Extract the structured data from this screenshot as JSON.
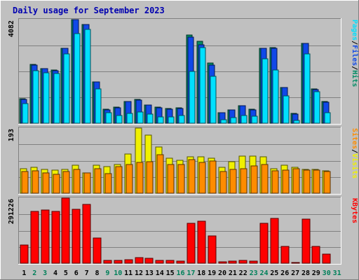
{
  "chart_data": [
    {
      "type": "bar",
      "title": "Daily usage for September 2023",
      "panel": "hits-files-pages",
      "ymax_label": "4082",
      "ylim": [
        0,
        4082
      ],
      "ylabel_parts": [
        {
          "text": "Pages",
          "color": "#00e0ff"
        },
        {
          "text": "/",
          "color": "#000000"
        },
        {
          "text": "Files",
          "color": "#1048e8"
        },
        {
          "text": "/",
          "color": "#000000"
        },
        {
          "text": "Hits",
          "color": "#008c64"
        }
      ],
      "categories": [
        "1",
        "2",
        "3",
        "4",
        "5",
        "6",
        "7",
        "8",
        "9",
        "10",
        "11",
        "12",
        "13",
        "14",
        "15",
        "16",
        "17",
        "18",
        "19",
        "20",
        "21",
        "22",
        "23",
        "24",
        "25",
        "26",
        "27",
        "28",
        "29",
        "30",
        "31"
      ],
      "weekend_days": [
        "2",
        "3",
        "9",
        "10",
        "16",
        "17",
        "23",
        "24",
        "30",
        "31"
      ],
      "series": [
        {
          "name": "Hits",
          "color": "#008c64",
          "values": [
            960,
            2320,
            2160,
            2100,
            2960,
            4082,
            3900,
            1630,
            540,
            630,
            860,
            930,
            730,
            630,
            570,
            600,
            3480,
            3230,
            2360,
            410,
            530,
            690,
            540,
            2960,
            2970,
            1420,
            380,
            3150,
            1340,
            850,
            0
          ]
        },
        {
          "name": "Files",
          "color": "#1048e8",
          "values": [
            940,
            2300,
            2140,
            2080,
            2950,
            4082,
            3890,
            1620,
            530,
            620,
            850,
            920,
            720,
            620,
            560,
            590,
            3380,
            3100,
            2300,
            400,
            520,
            680,
            530,
            2950,
            2960,
            1410,
            370,
            3140,
            1330,
            840,
            0
          ]
        },
        {
          "name": "Pages",
          "color": "#00e0ff",
          "values": [
            760,
            2080,
            1990,
            1960,
            2740,
            3520,
            3690,
            1360,
            410,
            310,
            390,
            450,
            370,
            250,
            250,
            290,
            2030,
            2980,
            1860,
            150,
            210,
            290,
            280,
            2540,
            2090,
            1070,
            120,
            2720,
            1240,
            420,
            0
          ]
        }
      ]
    },
    {
      "type": "bar",
      "panel": "visits-sites",
      "ymax_label": "193",
      "ylim": [
        0,
        193
      ],
      "ylabel_parts": [
        {
          "text": "Sites",
          "color": "#ff8c00"
        },
        {
          "text": "/",
          "color": "#000000"
        },
        {
          "text": "Visits",
          "color": "#f0f000"
        }
      ],
      "categories": [
        "1",
        "2",
        "3",
        "4",
        "5",
        "6",
        "7",
        "8",
        "9",
        "10",
        "11",
        "12",
        "13",
        "14",
        "15",
        "16",
        "17",
        "18",
        "19",
        "20",
        "21",
        "22",
        "23",
        "24",
        "25",
        "26",
        "27",
        "28",
        "29",
        "30",
        "31"
      ],
      "series": [
        {
          "name": "Visits",
          "color": "#f0f000",
          "values": [
            72,
            76,
            70,
            68,
            70,
            84,
            60,
            82,
            78,
            86,
            116,
            193,
            173,
            138,
            103,
            98,
            108,
            108,
            103,
            76,
            93,
            110,
            110,
            108,
            73,
            83,
            77,
            70,
            70,
            66,
            0
          ]
        },
        {
          "name": "Sites",
          "color": "#ff8c00",
          "values": [
            64,
            67,
            61,
            57,
            65,
            70,
            60,
            72,
            58,
            78,
            86,
            92,
            94,
            115,
            86,
            86,
            100,
            92,
            96,
            65,
            70,
            72,
            80,
            86,
            66,
            68,
            72,
            68,
            68,
            65,
            0
          ]
        }
      ]
    },
    {
      "type": "bar",
      "panel": "kbytes",
      "ymax_label": "291226",
      "ylim": [
        0,
        291226
      ],
      "ylabel_parts": [
        {
          "text": "KBytes",
          "color": "#ff0000"
        }
      ],
      "categories": [
        "1",
        "2",
        "3",
        "4",
        "5",
        "6",
        "7",
        "8",
        "9",
        "10",
        "11",
        "12",
        "13",
        "14",
        "15",
        "16",
        "17",
        "18",
        "19",
        "20",
        "21",
        "22",
        "23",
        "24",
        "25",
        "26",
        "27",
        "28",
        "29",
        "30",
        "31"
      ],
      "series": [
        {
          "name": "KBytes",
          "color": "#ff0000",
          "values": [
            81000,
            233000,
            239000,
            231000,
            291226,
            240000,
            264000,
            114000,
            13000,
            13000,
            17000,
            26000,
            21000,
            12000,
            12000,
            10000,
            177000,
            188000,
            123000,
            7000,
            8000,
            13000,
            10000,
            180000,
            200000,
            75000,
            4000,
            196000,
            76000,
            41000,
            0
          ]
        }
      ]
    }
  ]
}
